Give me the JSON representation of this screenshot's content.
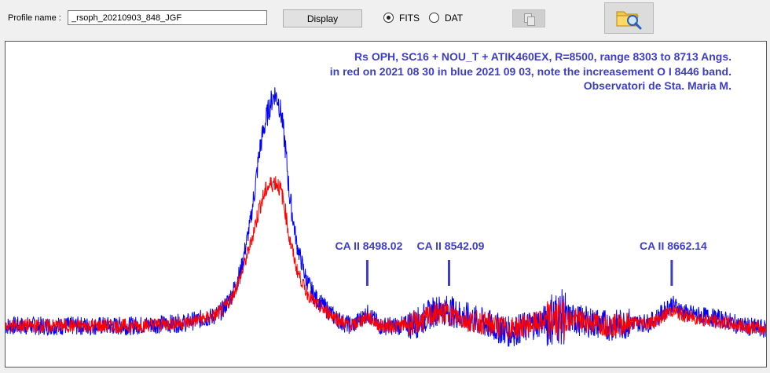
{
  "toolbar": {
    "profile_label": "Profile name :",
    "profile_value": "_rsoph_20210903_848_JGF",
    "display_label": "Display",
    "format_options": [
      "FITS",
      "DAT"
    ],
    "selected_format": "FITS",
    "copy_icon": "copy-icon",
    "folder_icon": "folder-search-icon"
  },
  "chart_data": {
    "type": "line",
    "title": "Rs OPH, SC16 + NOU_T + ATIK460EX, R=8500, range 8303 to 8713 Angs.",
    "subtitle": "in red on 2021 08 30 in blue 2021 09 03, note the increasement O I 8446 band.",
    "credit": "Observatori de Sta. Maria M.",
    "xlabel": "",
    "ylabel": "",
    "xlim": [
      8303,
      8713
    ],
    "ylim": [
      0,
      1
    ],
    "grid": false,
    "text_color": "#3d3dc8",
    "series": [
      {
        "color": "#0000ff",
        "x": [
          8303,
          8330,
          8350,
          8370,
          8400,
          8415,
          8420,
          8425,
          8430,
          8435,
          8438,
          8440,
          8442,
          8444,
          8446,
          8448,
          8450,
          8452,
          8454,
          8456,
          8460,
          8465,
          8470,
          8475,
          8480,
          8485,
          8490,
          8498,
          8505,
          8515,
          8525,
          8535,
          8542,
          8550,
          8560,
          8575,
          8590,
          8600,
          8610,
          8620,
          8630,
          8640,
          8650,
          8655,
          8662,
          8670,
          8680,
          8690,
          8700,
          8713
        ],
        "y": [
          0.12,
          0.12,
          0.12,
          0.12,
          0.13,
          0.15,
          0.17,
          0.22,
          0.3,
          0.45,
          0.58,
          0.68,
          0.74,
          0.79,
          0.83,
          0.86,
          0.84,
          0.78,
          0.68,
          0.54,
          0.38,
          0.27,
          0.21,
          0.18,
          0.15,
          0.13,
          0.12,
          0.16,
          0.12,
          0.12,
          0.13,
          0.17,
          0.17,
          0.15,
          0.13,
          0.1,
          0.13,
          0.15,
          0.14,
          0.13,
          0.12,
          0.13,
          0.13,
          0.15,
          0.19,
          0.16,
          0.15,
          0.14,
          0.12,
          0.11
        ]
      },
      {
        "color": "#ff0000",
        "x": [
          8303,
          8330,
          8350,
          8370,
          8400,
          8415,
          8420,
          8425,
          8430,
          8435,
          8438,
          8440,
          8442,
          8444,
          8446,
          8448,
          8450,
          8452,
          8454,
          8456,
          8460,
          8465,
          8470,
          8475,
          8480,
          8485,
          8490,
          8498,
          8505,
          8515,
          8525,
          8535,
          8542,
          8550,
          8560,
          8575,
          8590,
          8600,
          8610,
          8620,
          8630,
          8640,
          8650,
          8655,
          8662,
          8670,
          8680,
          8690,
          8700,
          8713
        ],
        "y": [
          0.12,
          0.12,
          0.12,
          0.12,
          0.13,
          0.15,
          0.17,
          0.21,
          0.28,
          0.38,
          0.45,
          0.5,
          0.53,
          0.56,
          0.57,
          0.58,
          0.57,
          0.54,
          0.48,
          0.4,
          0.3,
          0.23,
          0.19,
          0.17,
          0.15,
          0.13,
          0.12,
          0.15,
          0.12,
          0.12,
          0.13,
          0.16,
          0.16,
          0.14,
          0.13,
          0.11,
          0.13,
          0.14,
          0.14,
          0.13,
          0.12,
          0.13,
          0.13,
          0.14,
          0.17,
          0.15,
          0.14,
          0.13,
          0.12,
          0.11
        ]
      }
    ],
    "annotations": [
      {
        "label": "CA II 8498.02",
        "x": 8498.02
      },
      {
        "label": "CA II 8542.09",
        "x": 8542.09
      },
      {
        "label": "CA II 8662.14",
        "x": 8662.14
      }
    ]
  }
}
